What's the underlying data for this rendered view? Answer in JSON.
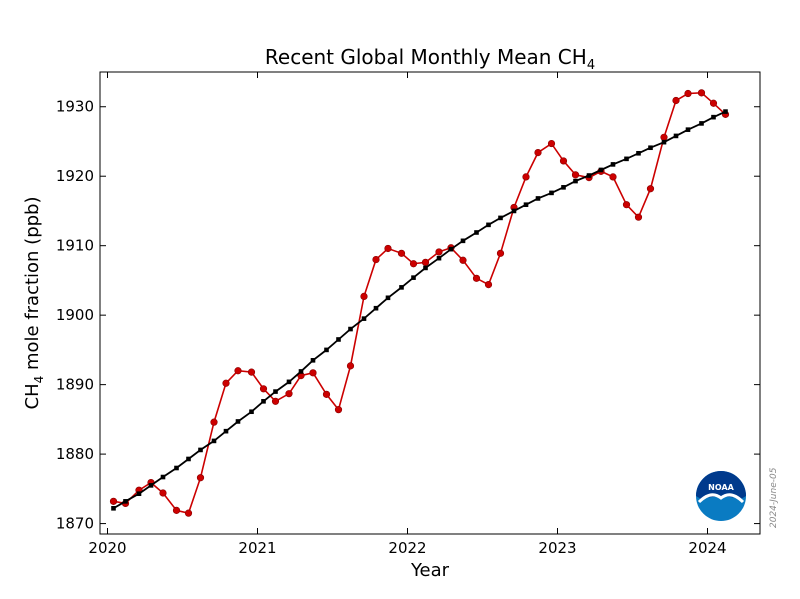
{
  "chart_data": {
    "type": "line",
    "title_main": "Recent Global Monthly Mean CH",
    "title_sub": "4",
    "xlabel": "Year",
    "ylabel_main": "CH",
    "ylabel_sub": "4",
    "ylabel_rest": " mole fraction (ppb)",
    "xlim": [
      2019.95,
      2024.35
    ],
    "ylim": [
      1868.5,
      1935.0
    ],
    "x_ticks": [
      2020,
      2021,
      2022,
      2023,
      2024
    ],
    "x_tick_labels": [
      "2020",
      "2021",
      "2022",
      "2023",
      "2024"
    ],
    "y_ticks": [
      1870,
      1880,
      1890,
      1900,
      1910,
      1920,
      1930
    ],
    "y_tick_labels": [
      "1870",
      "1880",
      "1890",
      "1900",
      "1910",
      "1920",
      "1930"
    ],
    "grid": false,
    "watermark": "2024-June-05",
    "logo_text": "NOAA",
    "series": [
      {
        "color": "#cc0000",
        "marker": "circle",
        "x": [
          2020.04,
          2020.12,
          2020.21,
          2020.29,
          2020.37,
          2020.46,
          2020.54,
          2020.62,
          2020.71,
          2020.79,
          2020.87,
          2020.96,
          2021.04,
          2021.12,
          2021.21,
          2021.29,
          2021.37,
          2021.46,
          2021.54,
          2021.62,
          2021.71,
          2021.79,
          2021.87,
          2021.96,
          2022.04,
          2022.12,
          2022.21,
          2022.29,
          2022.37,
          2022.46,
          2022.54,
          2022.62,
          2022.71,
          2022.79,
          2022.87,
          2022.96,
          2023.04,
          2023.12,
          2023.21,
          2023.29,
          2023.37,
          2023.46,
          2023.54,
          2023.62,
          2023.71,
          2023.79,
          2023.87,
          2023.96,
          2024.04,
          2024.12
        ],
        "y": [
          1873.2,
          1872.9,
          1874.8,
          1875.9,
          1874.4,
          1871.9,
          1871.5,
          1876.6,
          1884.6,
          1890.2,
          1892.0,
          1891.8,
          1889.4,
          1887.6,
          1888.7,
          1891.3,
          1891.7,
          1888.6,
          1886.4,
          1892.7,
          1902.7,
          1908.0,
          1909.6,
          1908.9,
          1907.4,
          1907.6,
          1909.1,
          1909.7,
          1907.9,
          1905.3,
          1904.4,
          1908.9,
          1915.5,
          1919.9,
          1923.4,
          1924.7,
          1922.2,
          1920.2,
          1919.8,
          1920.7,
          1919.9,
          1915.9,
          1914.1,
          1918.2,
          1925.6,
          1930.9,
          1931.9,
          1932.0,
          1930.5,
          1928.9
        ]
      },
      {
        "color": "#000000",
        "marker": "square",
        "x": [
          2020.04,
          2020.12,
          2020.21,
          2020.29,
          2020.37,
          2020.46,
          2020.54,
          2020.62,
          2020.71,
          2020.79,
          2020.87,
          2020.96,
          2021.04,
          2021.12,
          2021.21,
          2021.29,
          2021.37,
          2021.46,
          2021.54,
          2021.62,
          2021.71,
          2021.79,
          2021.87,
          2021.96,
          2022.04,
          2022.12,
          2022.21,
          2022.29,
          2022.37,
          2022.46,
          2022.54,
          2022.62,
          2022.71,
          2022.79,
          2022.87,
          2022.96,
          2023.04,
          2023.12,
          2023.21,
          2023.29,
          2023.37,
          2023.46,
          2023.54,
          2023.62,
          2023.71,
          2023.79,
          2023.87,
          2023.96,
          2024.04,
          2024.12
        ],
        "y": [
          1872.2,
          1873.2,
          1874.3,
          1875.5,
          1876.7,
          1878.0,
          1879.3,
          1880.6,
          1881.9,
          1883.3,
          1884.7,
          1886.1,
          1887.6,
          1889.0,
          1890.4,
          1891.9,
          1893.5,
          1895.0,
          1896.5,
          1898.0,
          1899.5,
          1901.0,
          1902.5,
          1904.0,
          1905.4,
          1906.8,
          1908.2,
          1909.5,
          1910.7,
          1911.9,
          1913.0,
          1914.0,
          1915.0,
          1915.9,
          1916.8,
          1917.6,
          1918.4,
          1919.3,
          1920.1,
          1920.9,
          1921.7,
          1922.5,
          1923.3,
          1924.1,
          1924.9,
          1925.8,
          1926.7,
          1927.6,
          1928.5,
          1929.3
        ]
      }
    ]
  }
}
